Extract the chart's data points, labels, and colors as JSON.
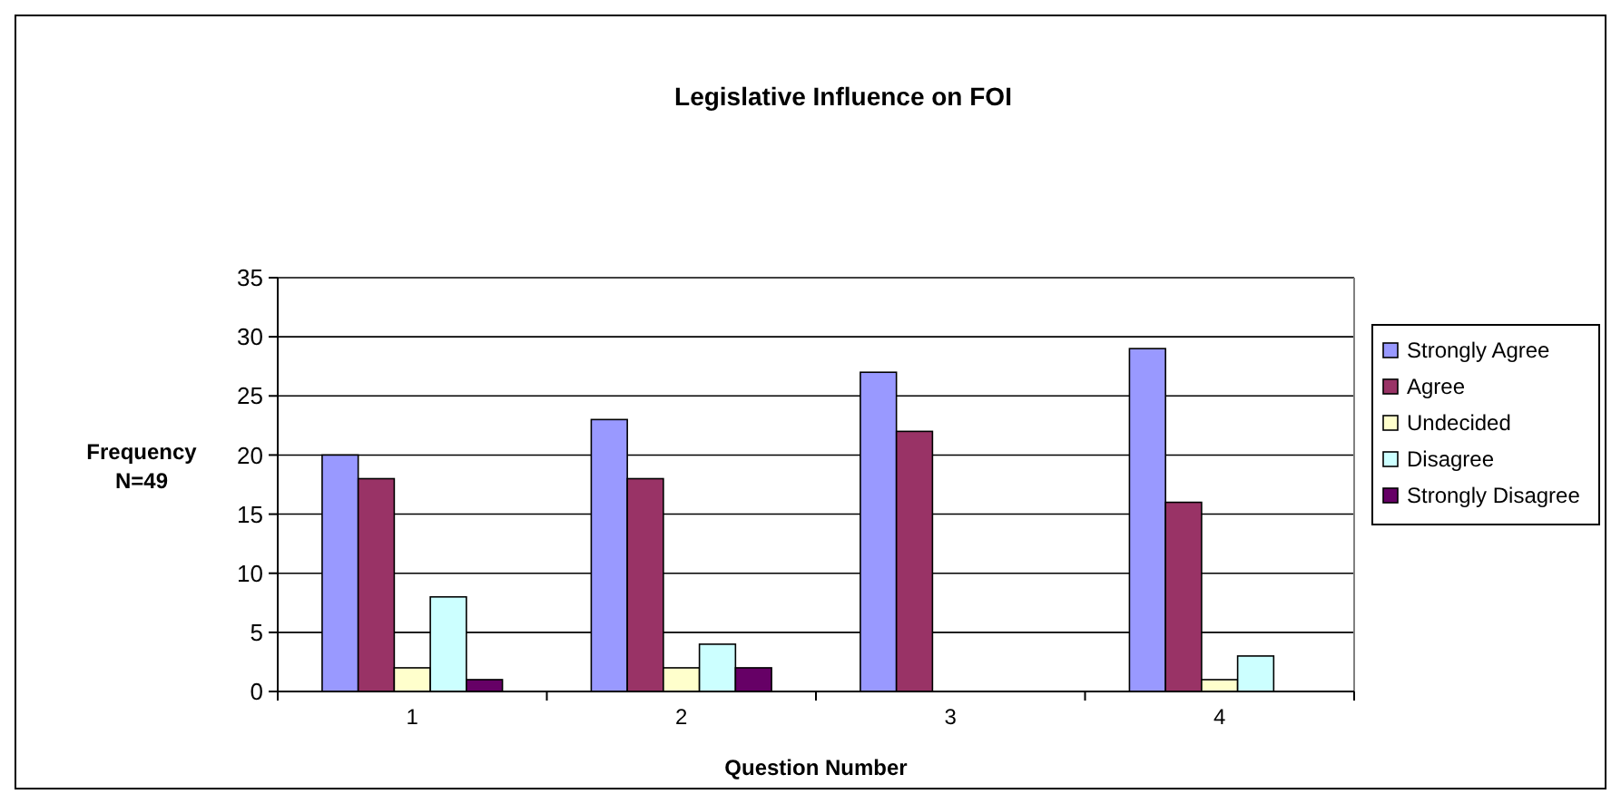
{
  "chart_data": {
    "type": "bar",
    "title": "Legislative Influence on FOI",
    "xlabel": "Question Number",
    "ylabel": "Frequency\nN=49",
    "categories": [
      "1",
      "2",
      "3",
      "4"
    ],
    "series": [
      {
        "name": "Strongly Agree",
        "color": "#9999ff",
        "values": [
          20,
          23,
          27,
          29
        ]
      },
      {
        "name": "Agree",
        "color": "#993366",
        "values": [
          18,
          18,
          22,
          16
        ]
      },
      {
        "name": "Undecided",
        "color": "#ffffcc",
        "values": [
          2,
          2,
          0,
          1
        ]
      },
      {
        "name": "Disagree",
        "color": "#ccffff",
        "values": [
          8,
          4,
          0,
          3
        ]
      },
      {
        "name": "Strongly Disagree",
        "color": "#660066",
        "values": [
          1,
          2,
          0,
          0
        ]
      }
    ],
    "ylim": [
      0,
      35
    ],
    "yticks": [
      0,
      5,
      10,
      15,
      20,
      25,
      30,
      35
    ],
    "grid": "y",
    "legend": "right"
  }
}
